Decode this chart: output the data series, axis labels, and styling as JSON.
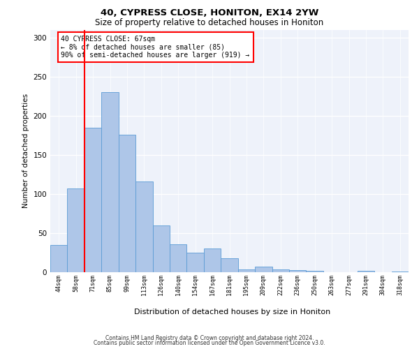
{
  "title1": "40, CYPRESS CLOSE, HONITON, EX14 2YW",
  "title2": "Size of property relative to detached houses in Honiton",
  "xlabel": "Distribution of detached houses by size in Honiton",
  "ylabel": "Number of detached properties",
  "categories": [
    "44sqm",
    "58sqm",
    "71sqm",
    "85sqm",
    "99sqm",
    "113sqm",
    "126sqm",
    "140sqm",
    "154sqm",
    "167sqm",
    "181sqm",
    "195sqm",
    "209sqm",
    "222sqm",
    "236sqm",
    "250sqm",
    "263sqm",
    "277sqm",
    "291sqm",
    "304sqm",
    "318sqm"
  ],
  "values": [
    35,
    107,
    185,
    230,
    176,
    116,
    60,
    36,
    25,
    30,
    18,
    4,
    7,
    4,
    3,
    2,
    0,
    0,
    2,
    0,
    1
  ],
  "bar_color": "#aec6e8",
  "bar_edge_color": "#5a9bd5",
  "annotation_text": "40 CYPRESS CLOSE: 67sqm\n← 8% of detached houses are smaller (85)\n90% of semi-detached houses are larger (919) →",
  "ylim": [
    0,
    310
  ],
  "yticks": [
    0,
    50,
    100,
    150,
    200,
    250,
    300
  ],
  "footer1": "Contains HM Land Registry data © Crown copyright and database right 2024.",
  "footer2": "Contains public sector information licensed under the Open Government Licence v3.0.",
  "bg_color": "#eef2fa"
}
